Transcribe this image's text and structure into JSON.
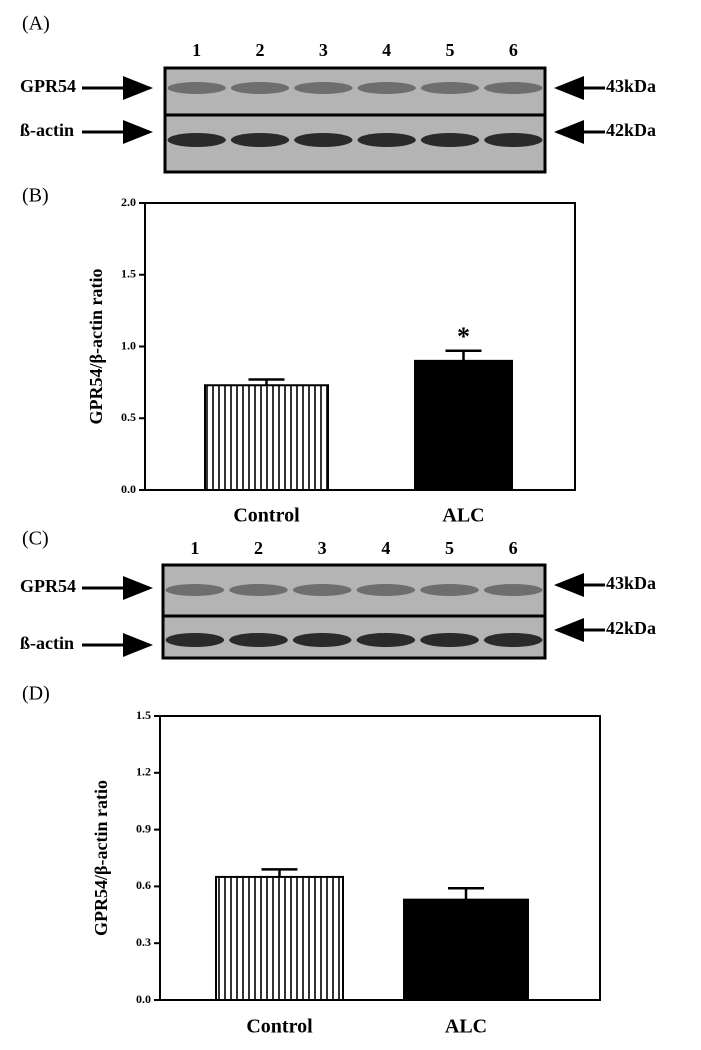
{
  "panel_labels": [
    "(A)",
    "(B)",
    "(C)",
    "(D)"
  ],
  "blots": [
    {
      "lanes": [
        "1",
        "2",
        "3",
        "4",
        "5",
        "6"
      ],
      "rows": [
        {
          "label": "GPR54",
          "size": "43kDa"
        },
        {
          "label": "ß-actin",
          "size": "42kDa"
        }
      ]
    },
    {
      "lanes": [
        "1",
        "2",
        "3",
        "4",
        "5",
        "6"
      ],
      "rows": [
        {
          "label": "GPR54",
          "size": "43kDa"
        },
        {
          "label": "ß-actin",
          "size": "42kDa"
        }
      ]
    }
  ],
  "chart_data": [
    {
      "type": "bar",
      "ylabel": "GPR54/β-actin ratio",
      "categories": [
        "Control",
        "ALC"
      ],
      "values": [
        0.73,
        0.9
      ],
      "errors": [
        0.04,
        0.07
      ],
      "fills": [
        "vertical-stripes",
        "#000000"
      ],
      "annotations": [
        {
          "text": "*",
          "x": "ALC"
        }
      ],
      "ylim": [
        0,
        2
      ],
      "yticks": [
        {
          "value": 0,
          "label": "0.0"
        },
        0.5,
        {
          "value": 1,
          "label": "1.0"
        },
        1.5,
        {
          "value": 2,
          "label": "2.0"
        }
      ]
    },
    {
      "type": "bar",
      "ylabel": "GPR54/β-actin ratio",
      "categories": [
        "Control",
        "ALC"
      ],
      "values": [
        0.65,
        0.53
      ],
      "errors": [
        0.04,
        0.06
      ],
      "fills": [
        "vertical-stripes",
        "#000000"
      ],
      "ylim": [
        0,
        1.5
      ],
      "yticks": [
        {
          "value": 0,
          "label": "0.0"
        },
        0.3,
        0.6,
        0.9,
        1.2,
        1.5
      ]
    }
  ]
}
